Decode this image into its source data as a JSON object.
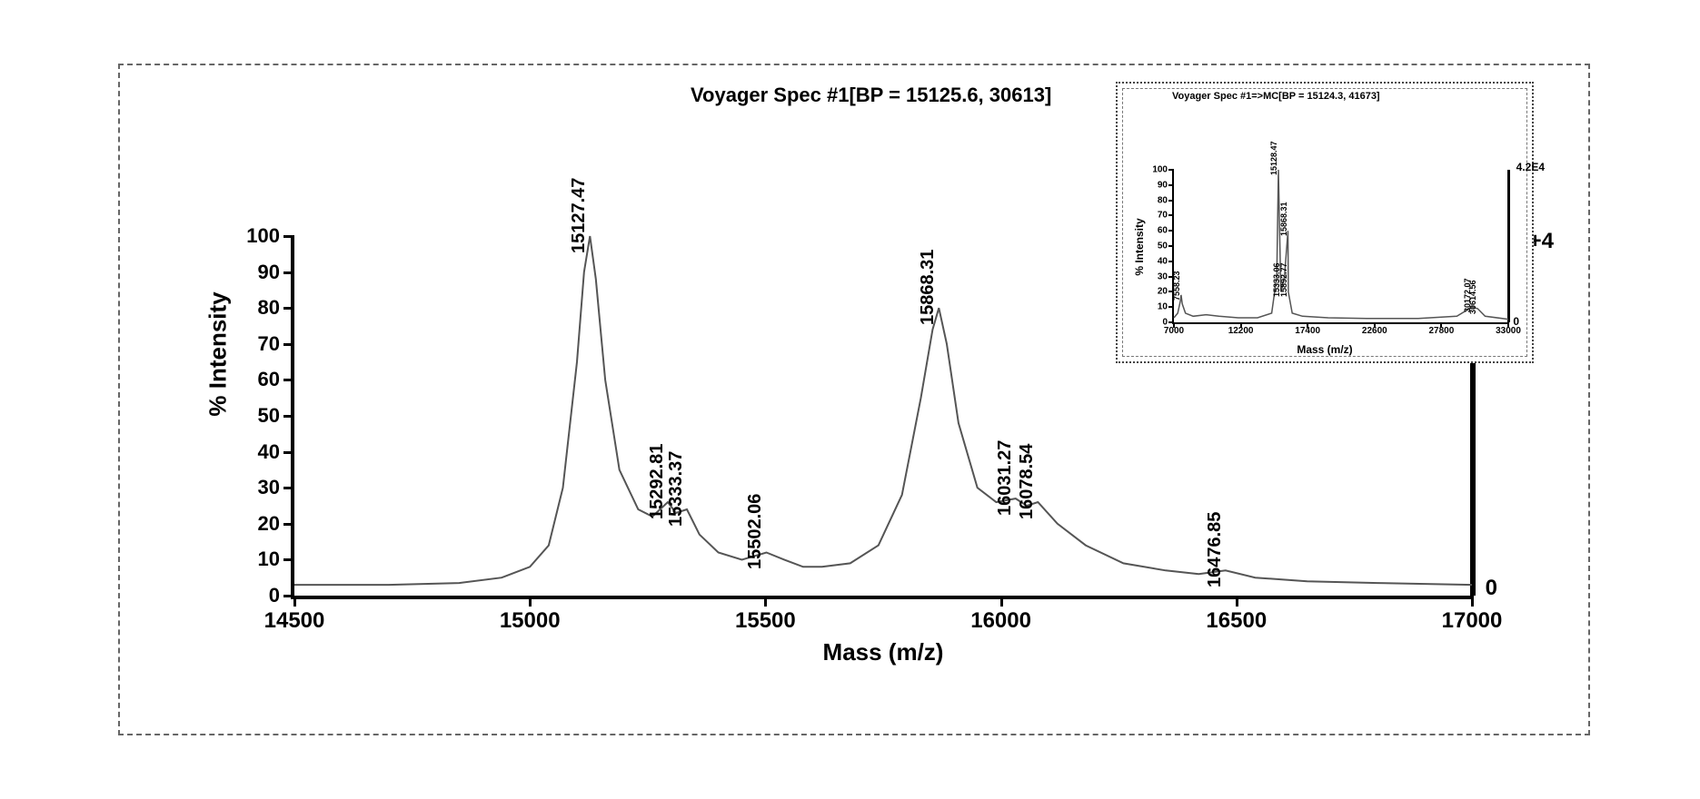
{
  "colors": {
    "background": "#ffffff",
    "axis": "#000000",
    "line": "#555555",
    "border_dash": "#666666",
    "text": "#000000"
  },
  "main": {
    "title": "Voyager Spec #1[BP = 15125.6, 30613]",
    "title_fontsize": 22,
    "x_label": "Mass (m/z)",
    "y_label": "% Intensity",
    "label_fontsize": 26,
    "xlim": [
      14500,
      17000
    ],
    "ylim": [
      0,
      100
    ],
    "xticks": [
      14500,
      15000,
      15500,
      16000,
      16500,
      17000
    ],
    "yticks": [
      0,
      10,
      20,
      30,
      40,
      50,
      60,
      70,
      80,
      90,
      100
    ],
    "tick_fontsize": 23,
    "line_color": "#555555",
    "line_width": 2,
    "right_axis_top_label": "3.1E+4",
    "right_axis_bottom_label": "0",
    "baseline_y": 3,
    "spectrum": [
      [
        14500,
        3
      ],
      [
        14700,
        3
      ],
      [
        14850,
        3.5
      ],
      [
        14940,
        5
      ],
      [
        15000,
        8
      ],
      [
        15040,
        14
      ],
      [
        15070,
        30
      ],
      [
        15100,
        65
      ],
      [
        15115,
        90
      ],
      [
        15127.47,
        100
      ],
      [
        15140,
        88
      ],
      [
        15160,
        60
      ],
      [
        15190,
        35
      ],
      [
        15230,
        24
      ],
      [
        15260,
        22
      ],
      [
        15292.81,
        26
      ],
      [
        15310,
        23
      ],
      [
        15333.37,
        24
      ],
      [
        15360,
        17
      ],
      [
        15400,
        12
      ],
      [
        15450,
        10
      ],
      [
        15502.06,
        12
      ],
      [
        15540,
        10
      ],
      [
        15580,
        8
      ],
      [
        15620,
        8
      ],
      [
        15680,
        9
      ],
      [
        15740,
        14
      ],
      [
        15790,
        28
      ],
      [
        15830,
        55
      ],
      [
        15855,
        74
      ],
      [
        15868.31,
        80
      ],
      [
        15885,
        70
      ],
      [
        15910,
        48
      ],
      [
        15950,
        30
      ],
      [
        15990,
        26
      ],
      [
        16031.27,
        27
      ],
      [
        16055,
        25
      ],
      [
        16078.54,
        26
      ],
      [
        16120,
        20
      ],
      [
        16180,
        14
      ],
      [
        16260,
        9
      ],
      [
        16350,
        7
      ],
      [
        16420,
        6
      ],
      [
        16476.85,
        7
      ],
      [
        16540,
        5
      ],
      [
        16650,
        4
      ],
      [
        16800,
        3.5
      ],
      [
        17000,
        3
      ]
    ],
    "peak_labels": [
      {
        "mz": 15127.47,
        "y": 100,
        "text": "15127.47"
      },
      {
        "mz": 15292.81,
        "y": 26,
        "text": "15292.81"
      },
      {
        "mz": 15333.37,
        "y": 24,
        "text": "15333.37"
      },
      {
        "mz": 15502.06,
        "y": 12,
        "text": "15502.06"
      },
      {
        "mz": 15868.31,
        "y": 80,
        "text": "15868.31"
      },
      {
        "mz": 16031.27,
        "y": 27,
        "text": "16031.27"
      },
      {
        "mz": 16078.54,
        "y": 26,
        "text": "16078.54"
      },
      {
        "mz": 16476.85,
        "y": 7,
        "text": "16476.85"
      }
    ]
  },
  "inset": {
    "title": "Voyager Spec #1=>MC[BP = 15124.3, 41673]",
    "title_fontsize": 11,
    "x_label": "Mass (m/z)",
    "y_label": "% Intensity",
    "label_fontsize": 12,
    "xlim": [
      7000,
      33000
    ],
    "ylim": [
      0,
      100
    ],
    "xticks": [
      7000,
      12200,
      17400,
      22600,
      27800,
      33000
    ],
    "yticks": [
      0,
      10,
      20,
      30,
      40,
      50,
      60,
      70,
      80,
      90,
      100
    ],
    "tick_fontsize": 10,
    "line_color": "#555555",
    "line_width": 1.5,
    "right_axis_top_label": "4.2E4",
    "right_axis_bottom_label": "0",
    "baseline_y": 2,
    "spectrum": [
      [
        7000,
        3
      ],
      [
        7300,
        6
      ],
      [
        7500,
        14
      ],
      [
        7558.23,
        18
      ],
      [
        7650,
        12
      ],
      [
        7900,
        6
      ],
      [
        8500,
        4
      ],
      [
        9500,
        5
      ],
      [
        10500,
        4
      ],
      [
        12000,
        3
      ],
      [
        13500,
        3
      ],
      [
        14600,
        6
      ],
      [
        15000,
        30
      ],
      [
        15128.47,
        100
      ],
      [
        15300,
        25
      ],
      [
        15333.06,
        20
      ],
      [
        15600,
        30
      ],
      [
        15868.31,
        60
      ],
      [
        15892.77,
        20
      ],
      [
        16200,
        6
      ],
      [
        17000,
        4
      ],
      [
        19000,
        3
      ],
      [
        22000,
        2.5
      ],
      [
        26000,
        2.5
      ],
      [
        29000,
        4
      ],
      [
        30172.07,
        10
      ],
      [
        30614.56,
        9
      ],
      [
        31200,
        4
      ],
      [
        33000,
        2
      ]
    ],
    "peak_labels": [
      {
        "mz": 7558.23,
        "y": 18,
        "text": "7558.23"
      },
      {
        "mz": 15128.47,
        "y": 100,
        "text": "15128.47"
      },
      {
        "mz": 15868.31,
        "y": 60,
        "text": "15868.31"
      },
      {
        "mz": 15333.06,
        "y": 20,
        "text": "15333.06"
      },
      {
        "mz": 15892.77,
        "y": 20,
        "text": "15892.77"
      },
      {
        "mz": 30172.07,
        "y": 10,
        "text": "30172.07"
      },
      {
        "mz": 30614.56,
        "y": 9,
        "text": "30614.56"
      }
    ]
  }
}
